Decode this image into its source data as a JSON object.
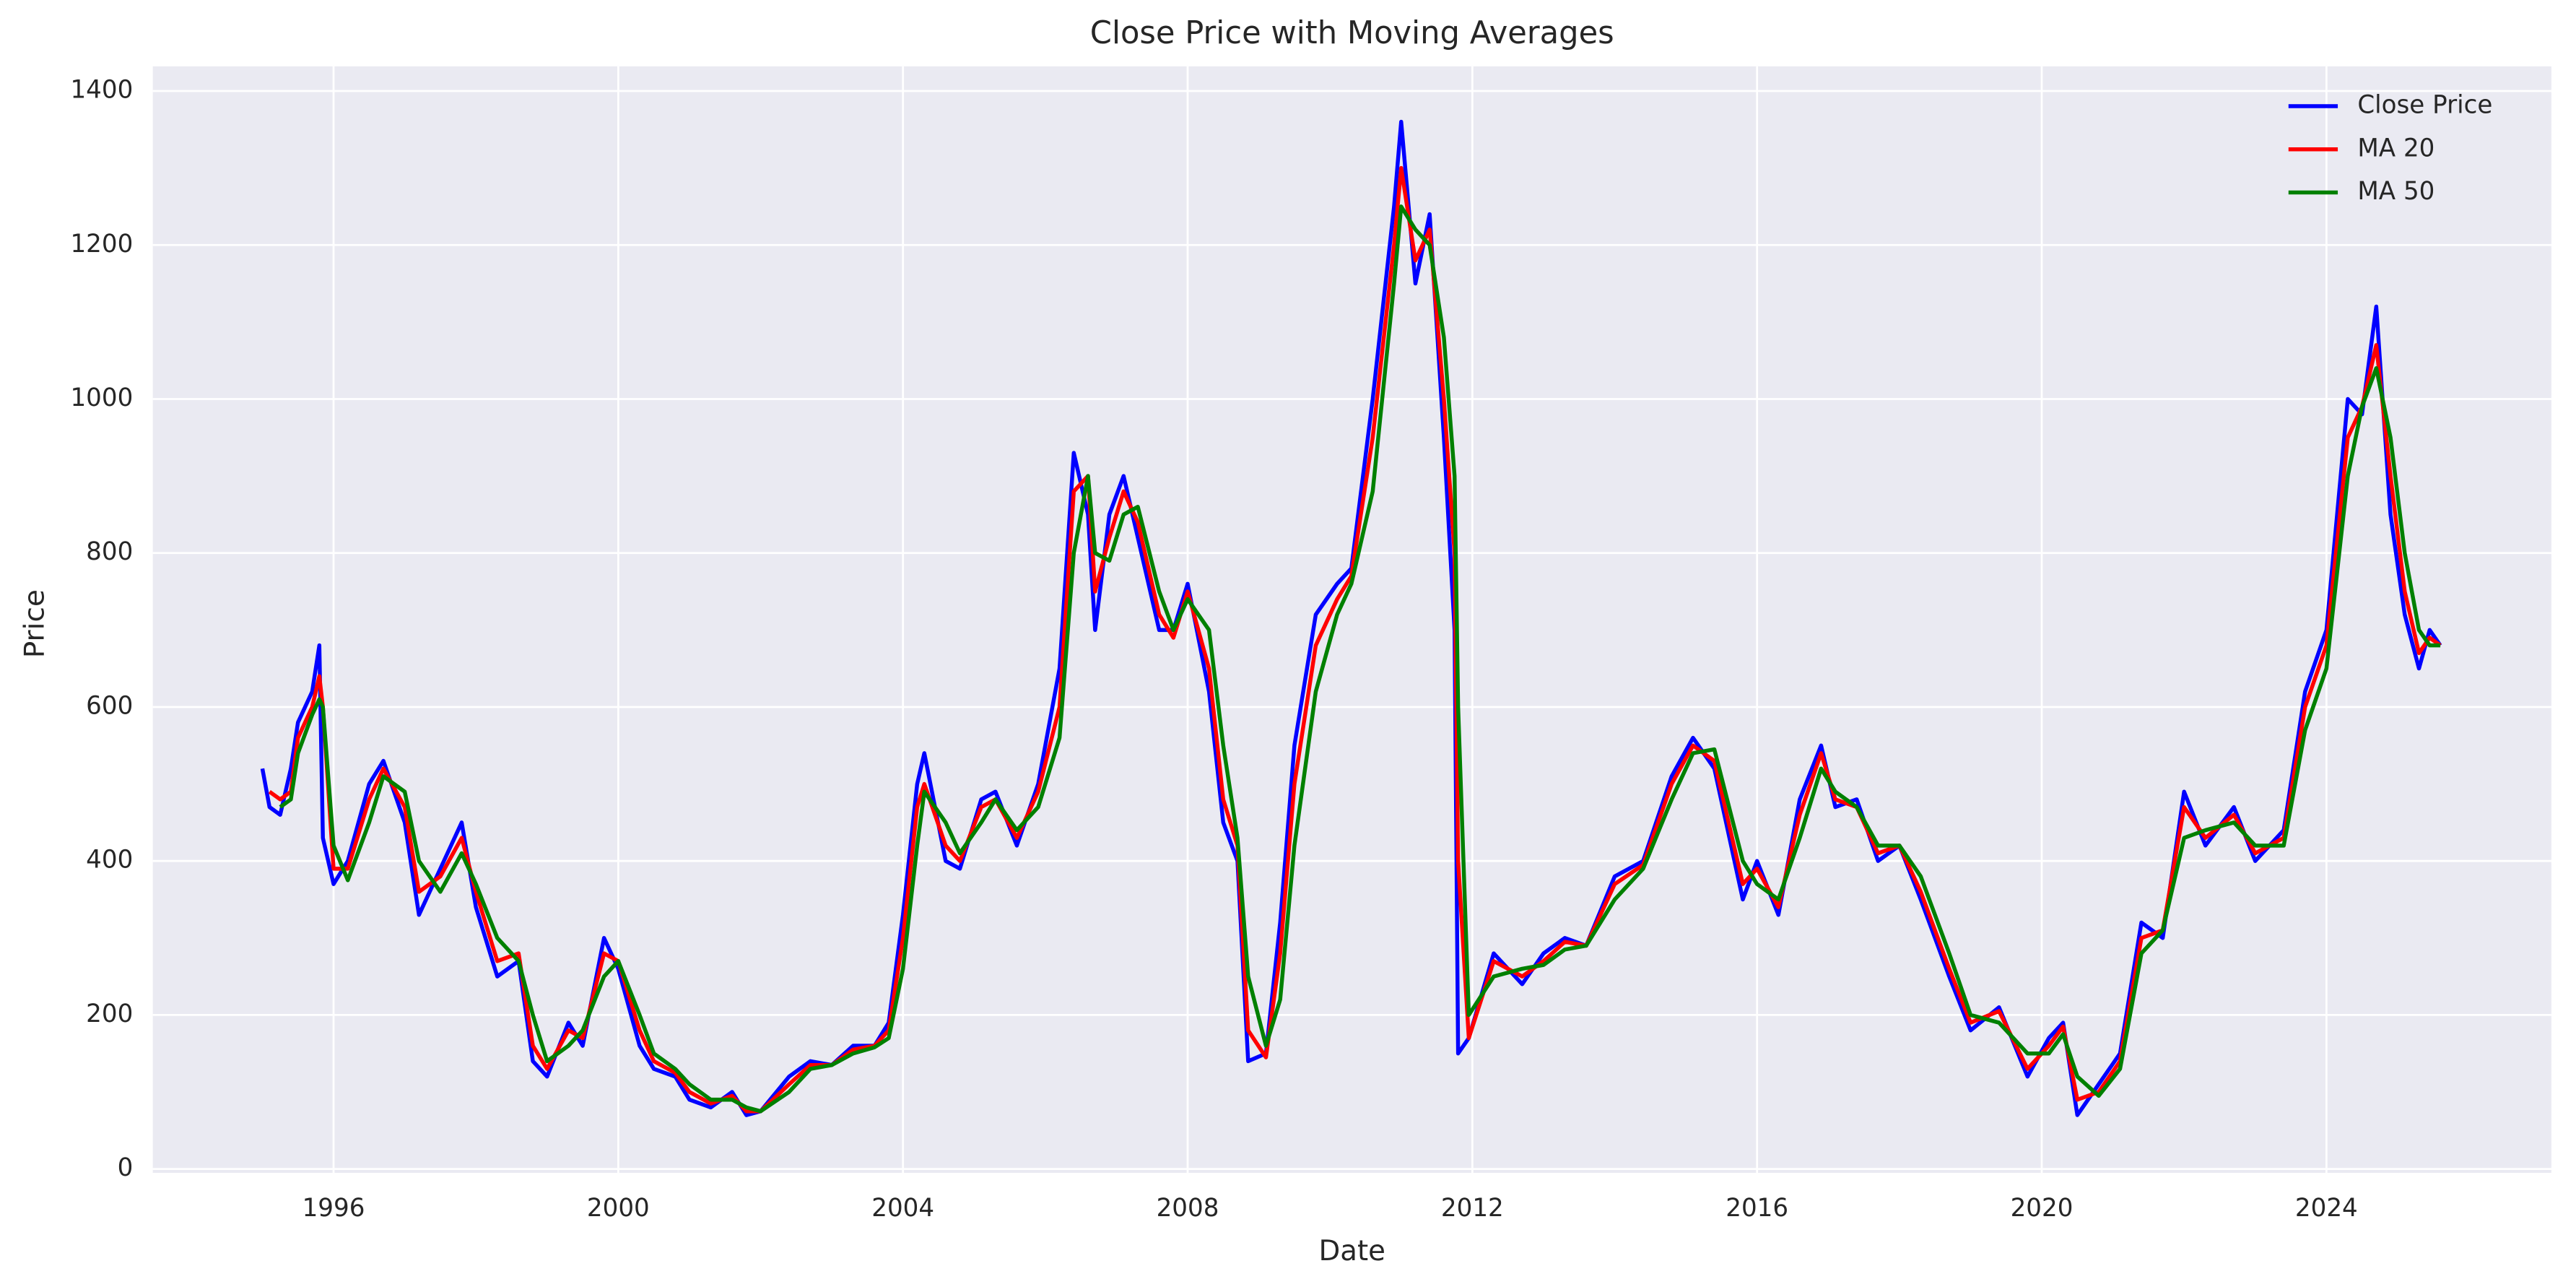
{
  "chart_data": {
    "type": "line",
    "title": "Close Price with Moving Averages",
    "x_label": "Date",
    "y_label": "Price",
    "x": [
      1995.0,
      1995.1,
      1995.25,
      1995.4,
      1995.5,
      1995.7,
      1995.8,
      1995.85,
      1996.0,
      1996.2,
      1996.5,
      1996.7,
      1997.0,
      1997.2,
      1997.5,
      1997.8,
      1998.0,
      1998.3,
      1998.6,
      1998.8,
      1999.0,
      1999.3,
      1999.5,
      1999.8,
      2000.0,
      2000.3,
      2000.5,
      2000.8,
      2001.0,
      2001.3,
      2001.6,
      2001.8,
      2002.0,
      2002.4,
      2002.7,
      2003.0,
      2003.3,
      2003.6,
      2003.8,
      2004.0,
      2004.2,
      2004.3,
      2004.6,
      2004.8,
      2005.1,
      2005.3,
      2005.6,
      2005.9,
      2006.2,
      2006.4,
      2006.6,
      2006.7,
      2006.9,
      2007.1,
      2007.3,
      2007.6,
      2007.8,
      2008.0,
      2008.3,
      2008.5,
      2008.7,
      2008.85,
      2009.1,
      2009.3,
      2009.5,
      2009.8,
      2010.1,
      2010.3,
      2010.6,
      2010.9,
      2011.0,
      2011.2,
      2011.4,
      2011.6,
      2011.75,
      2011.8,
      2011.95,
      2012.3,
      2012.7,
      2013.0,
      2013.3,
      2013.6,
      2014.0,
      2014.4,
      2014.8,
      2015.1,
      2015.4,
      2015.8,
      2016.0,
      2016.3,
      2016.6,
      2016.9,
      2017.1,
      2017.4,
      2017.7,
      2018.0,
      2018.3,
      2018.7,
      2019.0,
      2019.4,
      2019.8,
      2020.1,
      2020.3,
      2020.5,
      2020.8,
      2021.1,
      2021.4,
      2021.7,
      2022.0,
      2022.3,
      2022.7,
      2023.0,
      2023.4,
      2023.7,
      2024.0,
      2024.3,
      2024.5,
      2024.7,
      2024.9,
      2025.1,
      2025.3,
      2025.45,
      2025.6
    ],
    "series": [
      {
        "name": "Close Price",
        "color": "#0000ff",
        "values": [
          520,
          470,
          460,
          520,
          580,
          620,
          680,
          430,
          370,
          400,
          500,
          530,
          450,
          330,
          390,
          450,
          340,
          250,
          270,
          140,
          120,
          190,
          160,
          300,
          260,
          160,
          130,
          120,
          90,
          80,
          100,
          70,
          75,
          120,
          140,
          135,
          160,
          160,
          190,
          330,
          500,
          540,
          400,
          390,
          480,
          490,
          420,
          500,
          650,
          930,
          850,
          700,
          850,
          900,
          820,
          700,
          700,
          760,
          620,
          450,
          400,
          140,
          150,
          320,
          550,
          720,
          760,
          780,
          1000,
          1250,
          1360,
          1150,
          1240,
          950,
          700,
          150,
          170,
          280,
          240,
          280,
          300,
          290,
          380,
          400,
          510,
          560,
          520,
          350,
          400,
          330,
          480,
          550,
          470,
          480,
          400,
          420,
          350,
          250,
          180,
          210,
          120,
          170,
          190,
          70,
          110,
          150,
          320,
          300,
          490,
          420,
          470,
          400,
          440,
          620,
          700,
          1000,
          980,
          1120,
          850,
          720,
          650,
          700,
          680
        ]
      },
      {
        "name": "MA 20",
        "color": "#ff0000",
        "values": [
          null,
          490,
          480,
          490,
          560,
          600,
          640,
          600,
          390,
          390,
          480,
          520,
          470,
          360,
          380,
          430,
          360,
          270,
          280,
          160,
          130,
          180,
          170,
          280,
          270,
          180,
          140,
          125,
          100,
          85,
          95,
          75,
          75,
          110,
          135,
          135,
          155,
          160,
          180,
          300,
          470,
          500,
          420,
          400,
          470,
          480,
          430,
          490,
          600,
          880,
          900,
          750,
          820,
          880,
          840,
          720,
          690,
          750,
          650,
          480,
          420,
          180,
          145,
          280,
          500,
          680,
          740,
          770,
          950,
          1200,
          1300,
          1180,
          1220,
          1000,
          800,
          400,
          170,
          270,
          250,
          270,
          295,
          290,
          370,
          395,
          500,
          550,
          530,
          370,
          390,
          340,
          460,
          540,
          480,
          470,
          410,
          420,
          360,
          260,
          190,
          205,
          130,
          160,
          185,
          90,
          100,
          140,
          300,
          310,
          470,
          430,
          460,
          410,
          430,
          600,
          680,
          950,
          990,
          1070,
          900,
          750,
          670,
          690,
          680
        ]
      },
      {
        "name": "MA 50",
        "color": "#008000",
        "values": [
          null,
          null,
          470,
          480,
          540,
          590,
          610,
          600,
          420,
          375,
          450,
          510,
          490,
          400,
          360,
          410,
          370,
          300,
          270,
          200,
          140,
          160,
          180,
          250,
          270,
          200,
          150,
          130,
          110,
          90,
          90,
          80,
          75,
          100,
          130,
          135,
          150,
          158,
          170,
          260,
          420,
          490,
          450,
          410,
          450,
          480,
          440,
          470,
          560,
          800,
          900,
          800,
          790,
          850,
          860,
          750,
          700,
          740,
          700,
          550,
          430,
          250,
          160,
          220,
          420,
          620,
          720,
          760,
          880,
          1150,
          1250,
          1220,
          1200,
          1080,
          900,
          600,
          200,
          250,
          260,
          265,
          285,
          290,
          350,
          390,
          480,
          540,
          545,
          400,
          370,
          350,
          430,
          520,
          490,
          470,
          420,
          420,
          380,
          280,
          200,
          190,
          150,
          150,
          175,
          120,
          95,
          130,
          280,
          310,
          430,
          440,
          450,
          420,
          420,
          570,
          650,
          900,
          990,
          1040,
          950,
          800,
          700,
          680,
          680
        ]
      }
    ],
    "xlim": [
      1993.46,
      2027.16
    ],
    "ylim": [
      -5,
      1432
    ],
    "xticks": [
      1996,
      2000,
      2004,
      2008,
      2012,
      2016,
      2020,
      2024
    ],
    "yticks": [
      0,
      200,
      400,
      600,
      800,
      1000,
      1200,
      1400
    ],
    "grid": true,
    "legend": "upper right"
  }
}
